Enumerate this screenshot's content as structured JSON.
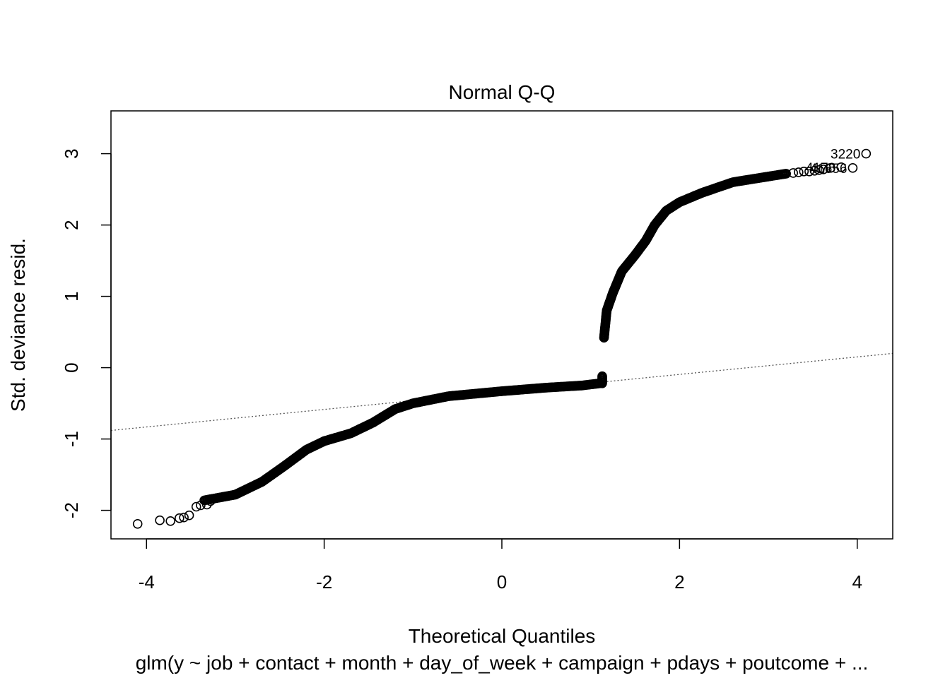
{
  "chart_data": {
    "type": "scatter",
    "title": "Normal Q-Q",
    "xlabel": "Theoretical Quantiles",
    "ylabel": "Std. deviance resid.",
    "subtitle": "glm(y ~ job + contact + month + day_of_week + campaign + pdays + poutcome + ...",
    "xlim": [
      -4.4,
      4.4
    ],
    "ylim": [
      -2.4,
      3.6
    ],
    "x_ticks": [
      -4,
      -2,
      0,
      2,
      4
    ],
    "y_ticks": [
      -2,
      -1,
      0,
      1,
      2,
      3
    ],
    "grid": false,
    "reference_line": {
      "style": "dotted",
      "from": [
        -4.4,
        -0.88
      ],
      "to": [
        4.4,
        0.2
      ]
    },
    "segments": [
      {
        "name": "",
        "points": [
          [
            -3.35,
            -1.86
          ],
          [
            -3.0,
            -1.78
          ],
          [
            -2.7,
            -1.6
          ],
          [
            -2.45,
            -1.38
          ],
          [
            -2.2,
            -1.15
          ],
          [
            -2.0,
            -1.03
          ],
          [
            -1.7,
            -0.92
          ],
          [
            -1.45,
            -0.77
          ],
          [
            -1.2,
            -0.58
          ],
          [
            -1.0,
            -0.5
          ],
          [
            -0.6,
            -0.4
          ],
          [
            0.0,
            -0.33
          ],
          [
            0.5,
            -0.28
          ],
          [
            0.9,
            -0.25
          ],
          [
            1.1,
            -0.22
          ]
        ]
      },
      {
        "name": "",
        "points": [
          [
            1.13,
            -0.12
          ],
          [
            1.13,
            -0.22
          ]
        ]
      },
      {
        "name": "",
        "points": [
          [
            1.15,
            0.42
          ],
          [
            1.18,
            0.8
          ],
          [
            1.25,
            1.05
          ],
          [
            1.35,
            1.35
          ],
          [
            1.5,
            1.58
          ],
          [
            1.62,
            1.78
          ],
          [
            1.72,
            2.0
          ],
          [
            1.85,
            2.2
          ],
          [
            2.0,
            2.32
          ],
          [
            2.25,
            2.45
          ],
          [
            2.6,
            2.6
          ],
          [
            3.0,
            2.68
          ],
          [
            3.2,
            2.72
          ]
        ]
      }
    ],
    "sparse_points": [
      [
        -4.1,
        -2.19
      ],
      [
        -3.85,
        -2.14
      ],
      [
        -3.73,
        -2.15
      ],
      [
        -3.63,
        -2.11
      ],
      [
        -3.58,
        -2.1
      ],
      [
        -3.52,
        -2.07
      ],
      [
        -3.44,
        -1.95
      ],
      [
        -3.39,
        -1.93
      ],
      [
        -3.32,
        -1.92
      ],
      [
        -3.28,
        -1.87
      ],
      [
        3.28,
        2.73
      ],
      [
        3.34,
        2.74
      ],
      [
        3.4,
        2.75
      ],
      [
        3.46,
        2.75
      ],
      [
        3.52,
        2.76
      ],
      [
        3.57,
        2.77
      ],
      [
        3.62,
        2.78
      ],
      [
        3.7,
        2.8
      ],
      [
        3.82,
        2.81
      ],
      [
        3.95,
        2.8
      ],
      [
        4.1,
        3.0
      ]
    ],
    "point_labels": [
      {
        "text": "3220",
        "x": 4.1,
        "y": 3.0
      },
      {
        "text": "41656",
        "x": 3.95,
        "y": 2.8
      },
      {
        "text": "4178",
        "x": 3.82,
        "y": 2.81
      }
    ]
  }
}
